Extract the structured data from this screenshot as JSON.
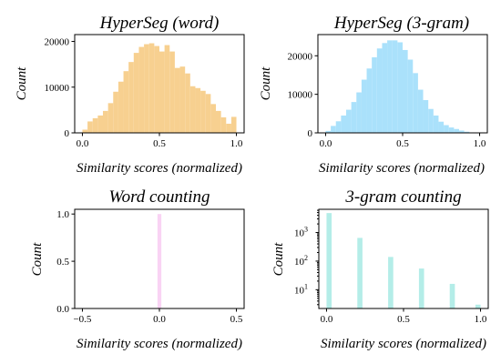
{
  "chart_data": [
    {
      "type": "bar",
      "title": "HyperSeg (word)",
      "xlabel": "Similarity scores (normalized)",
      "ylabel": "Count",
      "color": "#f7d090",
      "xlim": [
        -0.05,
        1.05
      ],
      "ylim": [
        0,
        21500
      ],
      "xticks": [
        0,
        0.5,
        1
      ],
      "xtick_labels": [
        "0.0",
        "0.5",
        "1.0"
      ],
      "yticks": [
        0,
        10000,
        20000
      ],
      "ytick_labels": [
        "0",
        "10000",
        "20000"
      ],
      "bin_width": 0.0333,
      "bin_starts": [
        0,
        0.0333,
        0.0667,
        0.1,
        0.1333,
        0.1667,
        0.2,
        0.2333,
        0.2667,
        0.3,
        0.3333,
        0.3667,
        0.4,
        0.4333,
        0.4667,
        0.5,
        0.5333,
        0.5667,
        0.6,
        0.6333,
        0.6667,
        0.7,
        0.7333,
        0.7667,
        0.8,
        0.8333,
        0.8667,
        0.9,
        0.9333,
        0.9667
      ],
      "values": [
        700,
        2500,
        3200,
        3800,
        4800,
        6500,
        9000,
        11200,
        13500,
        15500,
        17500,
        18800,
        19400,
        19600,
        19000,
        17800,
        19200,
        17800,
        14200,
        14500,
        13000,
        10200,
        9800,
        9200,
        8500,
        6300,
        4800,
        3400,
        2000,
        3500
      ]
    },
    {
      "type": "bar",
      "title": "HyperSeg (3-gram)",
      "xlabel": "Similarity scores (normalized)",
      "ylabel": "Count",
      "color": "#aae1fb",
      "xlim": [
        -0.05,
        1.05
      ],
      "ylim": [
        0,
        25500
      ],
      "xticks": [
        0,
        0.5,
        1
      ],
      "xtick_labels": [
        "0.0",
        "0.5",
        "1.0"
      ],
      "yticks": [
        0,
        10000,
        20000
      ],
      "ytick_labels": [
        "0",
        "10000",
        "20000"
      ],
      "bin_width": 0.0333,
      "bin_starts": [
        0,
        0.0333,
        0.0667,
        0.1,
        0.1333,
        0.1667,
        0.2,
        0.2333,
        0.2667,
        0.3,
        0.3333,
        0.3667,
        0.4,
        0.4333,
        0.4667,
        0.5,
        0.5333,
        0.5667,
        0.6,
        0.6333,
        0.6667,
        0.7,
        0.7333,
        0.7667,
        0.8,
        0.8333,
        0.8667,
        0.9,
        0.9333,
        0.9667
      ],
      "values": [
        500,
        1800,
        3000,
        4500,
        6000,
        8000,
        10500,
        13800,
        16700,
        19600,
        21900,
        23300,
        24000,
        24000,
        23500,
        21500,
        19000,
        15500,
        11200,
        8500,
        6200,
        4500,
        2900,
        2000,
        1400,
        1000,
        600,
        300,
        100,
        50
      ]
    },
    {
      "type": "bar",
      "title": "Word counting",
      "xlabel": "Similarity scores (normalized)",
      "ylabel": "Count",
      "color": "#f9d3f4",
      "xlim": [
        -0.55,
        0.55
      ],
      "ylim": [
        0,
        1.05
      ],
      "xticks": [
        -0.5,
        0,
        0.5
      ],
      "xtick_labels": [
        "−0.5",
        "0.0",
        "0.5"
      ],
      "yticks": [
        0,
        0.5,
        1
      ],
      "ytick_labels": [
        "0.0",
        "0.5",
        "1.0"
      ],
      "bin_width": 0.025,
      "bin_starts": [
        -0.0125
      ],
      "values": [
        1
      ]
    },
    {
      "type": "bar",
      "title": "3-gram counting",
      "xlabel": "Similarity scores (normalized)",
      "ylabel": "Count",
      "color": "#b4ede8",
      "yscale": "log",
      "xlim": [
        -0.05,
        1.05
      ],
      "ylim": [
        2.2,
        6500
      ],
      "xticks": [
        0,
        0.5,
        1
      ],
      "xtick_labels": [
        "0.0",
        "0.5",
        "1.0"
      ],
      "yticks": [
        10,
        100,
        1000
      ],
      "ytick_labels": [
        "10",
        "10",
        "10"
      ],
      "ytick_exponents": [
        "1",
        "2",
        "3"
      ],
      "bin_width": 0.0333,
      "bin_starts": [
        0,
        0.2,
        0.4,
        0.6,
        0.8,
        0.9667
      ],
      "values": [
        4800,
        650,
        140,
        55,
        16,
        3
      ]
    }
  ]
}
